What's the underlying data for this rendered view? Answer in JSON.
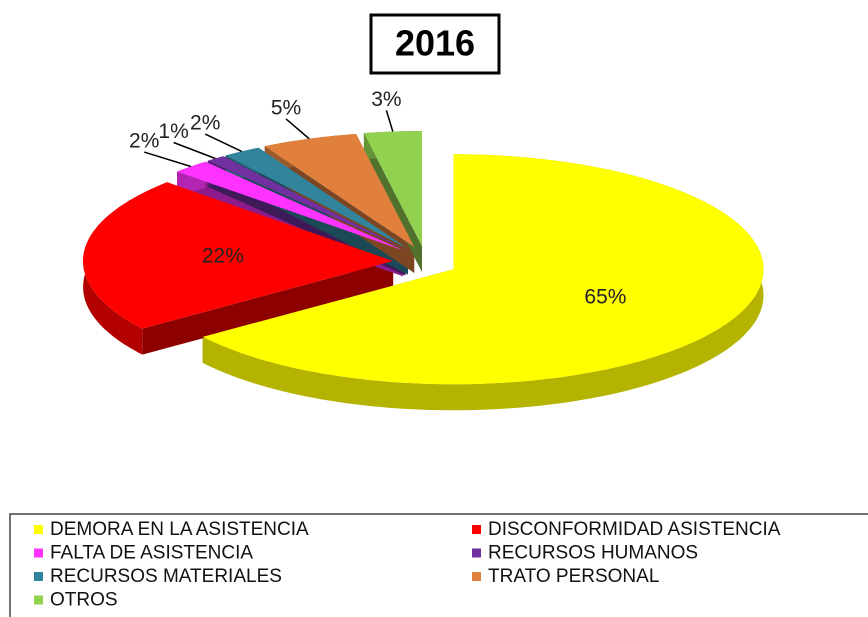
{
  "chart_data": {
    "type": "pie",
    "title": "2016",
    "categories": [
      "DEMORA EN LA ASISTENCIA",
      "DISCONFORMIDAD ASISTENCIA",
      "FALTA DE ASISTENCIA",
      "RECURSOS HUMANOS",
      "RECURSOS MATERIALES",
      "TRATO PERSONAL",
      "OTROS"
    ],
    "values": [
      65,
      22,
      2,
      1,
      2,
      5,
      3
    ],
    "value_labels": [
      "65%",
      "22%",
      "2%",
      "1%",
      "2%",
      "5%",
      "3%"
    ],
    "colors": [
      "#ffff00",
      "#ff0000",
      "#ff33ff",
      "#7030a0",
      "#31849b",
      "#e0803c",
      "#92d050"
    ]
  }
}
